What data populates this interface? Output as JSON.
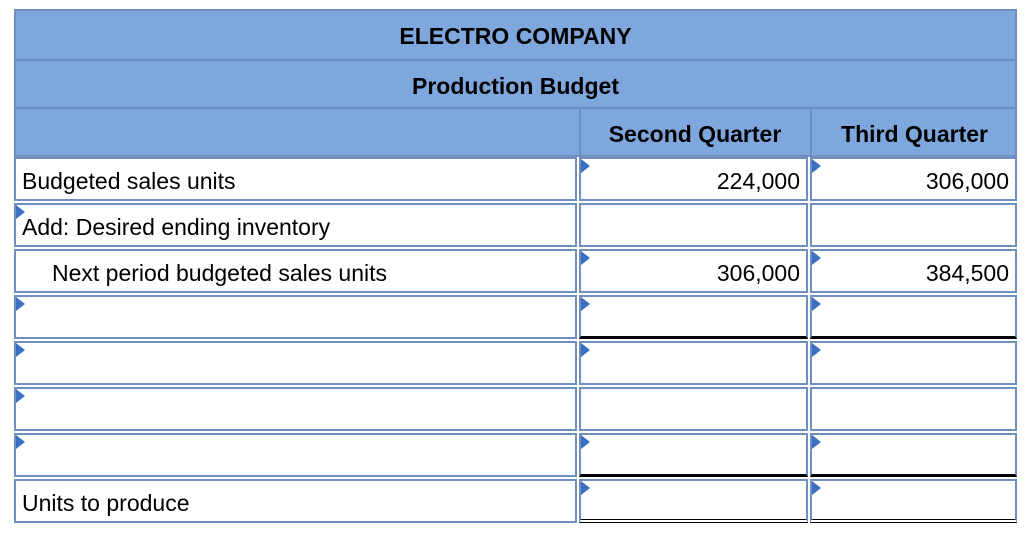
{
  "header": {
    "company": "ELECTRO COMPANY",
    "title": "Production Budget",
    "col_q2": "Second Quarter",
    "col_q3": "Third Quarter"
  },
  "rows": [
    {
      "label": "Budgeted sales units",
      "q2": "224,000",
      "q3": "306,000"
    },
    {
      "label": "Add: Desired ending inventory",
      "q2": "",
      "q3": ""
    },
    {
      "label": "Next period budgeted sales units",
      "q2": "306,000",
      "q3": "384,500"
    },
    {
      "label": "",
      "q2": "",
      "q3": ""
    },
    {
      "label": "",
      "q2": "",
      "q3": ""
    },
    {
      "label": "",
      "q2": "",
      "q3": ""
    },
    {
      "label": "",
      "q2": "",
      "q3": ""
    },
    {
      "label": "Units to produce",
      "q2": "",
      "q3": ""
    }
  ],
  "colors": {
    "header_fill": "#7ea7de",
    "border": "#6f8fbe",
    "marker": "#3b6fc4"
  }
}
